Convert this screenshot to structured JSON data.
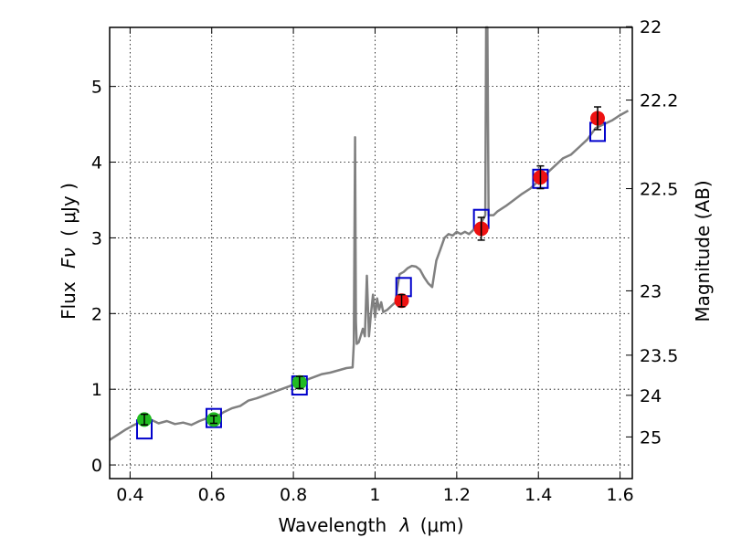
{
  "chart_data": {
    "type": "scatter",
    "xlabel_prefix": "Wavelength",
    "xlabel_symbol": "λ",
    "xlabel_unit": "(μm)",
    "ylabel_prefix": "Flux",
    "ylabel_symbol": "Fν",
    "ylabel_unit": "( μJy )",
    "y2label": "Magnitude (AB)",
    "xlim": [
      0.35,
      1.63
    ],
    "ylim": [
      -0.18,
      5.78
    ],
    "grid": true,
    "xticks": [
      {
        "value": 0.4,
        "label": "0.4"
      },
      {
        "value": 0.6,
        "label": "0.6"
      },
      {
        "value": 0.8,
        "label": "0.8"
      },
      {
        "value": 1.0,
        "label": "1"
      },
      {
        "value": 1.2,
        "label": "1.2"
      },
      {
        "value": 1.4,
        "label": "1.4"
      },
      {
        "value": 1.6,
        "label": "1.6"
      }
    ],
    "yticks": [
      {
        "value": 0,
        "label": "0"
      },
      {
        "value": 1,
        "label": "1"
      },
      {
        "value": 2,
        "label": "2"
      },
      {
        "value": 3,
        "label": "3"
      },
      {
        "value": 4,
        "label": "4"
      },
      {
        "value": 5,
        "label": "5"
      }
    ],
    "y2ticks": [
      {
        "label": "22",
        "flux": 5.79
      },
      {
        "label": "22.2",
        "flux": 4.82
      },
      {
        "label": "22.5",
        "flux": 3.65
      },
      {
        "label": "23",
        "flux": 2.3
      },
      {
        "label": "23.5",
        "flux": 1.45
      },
      {
        "label": "24",
        "flux": 0.92
      },
      {
        "label": "25",
        "flux": 0.37
      }
    ],
    "colors": {
      "model": "#808080",
      "model_photometry": "#0000cc",
      "optical": "#22bb22",
      "nir": "#ee1111",
      "errorbar": "#000000"
    },
    "model_spectrum": [
      [
        0.35,
        0.33
      ],
      [
        0.37,
        0.4
      ],
      [
        0.39,
        0.47
      ],
      [
        0.41,
        0.53
      ],
      [
        0.43,
        0.58
      ],
      [
        0.45,
        0.6
      ],
      [
        0.47,
        0.55
      ],
      [
        0.49,
        0.58
      ],
      [
        0.51,
        0.54
      ],
      [
        0.53,
        0.56
      ],
      [
        0.55,
        0.53
      ],
      [
        0.57,
        0.58
      ],
      [
        0.59,
        0.62
      ],
      [
        0.61,
        0.63
      ],
      [
        0.63,
        0.7
      ],
      [
        0.65,
        0.75
      ],
      [
        0.67,
        0.78
      ],
      [
        0.69,
        0.85
      ],
      [
        0.71,
        0.88
      ],
      [
        0.73,
        0.92
      ],
      [
        0.75,
        0.96
      ],
      [
        0.77,
        1.0
      ],
      [
        0.79,
        1.04
      ],
      [
        0.81,
        1.08
      ],
      [
        0.83,
        1.12
      ],
      [
        0.85,
        1.16
      ],
      [
        0.87,
        1.2
      ],
      [
        0.89,
        1.22
      ],
      [
        0.91,
        1.25
      ],
      [
        0.93,
        1.28
      ],
      [
        0.945,
        1.29
      ],
      [
        0.948,
        1.6
      ],
      [
        0.951,
        4.33
      ],
      [
        0.953,
        1.9
      ],
      [
        0.955,
        1.6
      ],
      [
        0.96,
        1.62
      ],
      [
        0.97,
        1.8
      ],
      [
        0.975,
        1.7
      ],
      [
        0.98,
        2.5
      ],
      [
        0.985,
        1.7
      ],
      [
        0.99,
        2.0
      ],
      [
        0.995,
        2.25
      ],
      [
        1.0,
        1.95
      ],
      [
        1.005,
        2.2
      ],
      [
        1.01,
        2.05
      ],
      [
        1.015,
        2.15
      ],
      [
        1.02,
        2.02
      ],
      [
        1.03,
        2.05
      ],
      [
        1.04,
        2.1
      ],
      [
        1.05,
        2.15
      ],
      [
        1.055,
        2.35
      ],
      [
        1.06,
        2.52
      ],
      [
        1.07,
        2.55
      ],
      [
        1.08,
        2.6
      ],
      [
        1.09,
        2.63
      ],
      [
        1.1,
        2.62
      ],
      [
        1.11,
        2.58
      ],
      [
        1.12,
        2.48
      ],
      [
        1.13,
        2.4
      ],
      [
        1.14,
        2.35
      ],
      [
        1.15,
        2.7
      ],
      [
        1.16,
        2.85
      ],
      [
        1.17,
        3.0
      ],
      [
        1.18,
        3.05
      ],
      [
        1.19,
        3.03
      ],
      [
        1.2,
        3.08
      ],
      [
        1.21,
        3.05
      ],
      [
        1.22,
        3.08
      ],
      [
        1.23,
        3.05
      ],
      [
        1.24,
        3.1
      ],
      [
        1.25,
        3.15
      ],
      [
        1.26,
        3.2
      ],
      [
        1.27,
        3.3
      ],
      [
        1.272,
        5.78
      ],
      [
        1.275,
        5.78
      ],
      [
        1.278,
        3.3
      ],
      [
        1.29,
        3.3
      ],
      [
        1.3,
        3.35
      ],
      [
        1.32,
        3.42
      ],
      [
        1.34,
        3.5
      ],
      [
        1.36,
        3.58
      ],
      [
        1.38,
        3.65
      ],
      [
        1.4,
        3.75
      ],
      [
        1.42,
        3.85
      ],
      [
        1.44,
        3.95
      ],
      [
        1.46,
        4.05
      ],
      [
        1.48,
        4.1
      ],
      [
        1.5,
        4.2
      ],
      [
        1.52,
        4.3
      ],
      [
        1.54,
        4.45
      ],
      [
        1.56,
        4.5
      ],
      [
        1.58,
        4.55
      ],
      [
        1.6,
        4.62
      ],
      [
        1.62,
        4.68
      ]
    ],
    "model_photometry": [
      {
        "x": 0.435,
        "y": 0.47
      },
      {
        "x": 0.605,
        "y": 0.62
      },
      {
        "x": 0.815,
        "y": 1.05
      },
      {
        "x": 1.07,
        "y": 2.35
      },
      {
        "x": 1.26,
        "y": 3.25
      },
      {
        "x": 1.405,
        "y": 3.78
      },
      {
        "x": 1.545,
        "y": 4.4
      }
    ],
    "observed_optical": [
      {
        "x": 0.435,
        "y": 0.6,
        "err": 0.07
      },
      {
        "x": 0.605,
        "y": 0.6,
        "err": 0.05
      },
      {
        "x": 0.815,
        "y": 1.09,
        "err": 0.08
      }
    ],
    "observed_nir": [
      {
        "x": 1.065,
        "y": 2.17,
        "err": 0.08
      },
      {
        "x": 1.26,
        "y": 3.12,
        "err": 0.15
      },
      {
        "x": 1.405,
        "y": 3.8,
        "err": 0.15
      },
      {
        "x": 1.545,
        "y": 4.58,
        "err": 0.15
      }
    ]
  }
}
